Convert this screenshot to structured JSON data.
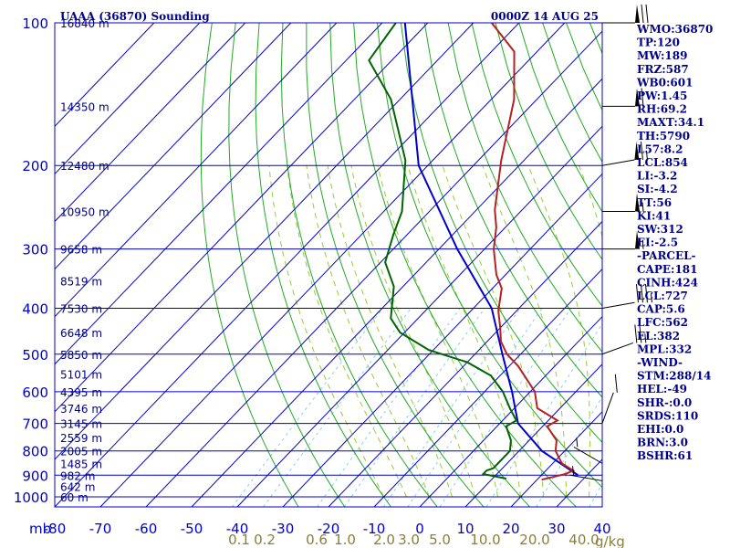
{
  "header": {
    "station": "UAAA (36870) Sounding",
    "time": "0000Z 14 AUG 25"
  },
  "stats": [
    "WMO:36870",
    "TP:120",
    "MW:189",
    "FRZ:587",
    "WB0:601",
    "PW:1.45",
    "RH:69.2",
    "MAXT:34.1",
    "TH:5790",
    "L57:8.2",
    "LCL:854",
    "LI:-3.2",
    "SI:-4.2",
    "TT:56",
    "KI:41",
    "SW:312",
    "EI:-2.5",
    "-PARCEL-",
    "CAPE:181",
    "CINH:424",
    "LCL:727",
    "CAP:5.6",
    "LFC:562",
    "EL:382",
    "MPL:332",
    "-WIND-",
    "STM:288/14",
    "HEL:-49",
    "SHR-:0.0",
    "SRDS:110",
    "EHI:0.0",
    "BRN:3.0",
    "BSHR:61"
  ],
  "colors": {
    "isobar": "#0000cd",
    "isotherm": "#0000cd",
    "dry_adiabat": "#22aa22",
    "moist_adiabat": "#9acd32",
    "mixing_ratio": "#87cefa",
    "temperature": "#b22222",
    "dewpoint": "#006400",
    "parcel": "#0000cd",
    "wind": "#000000"
  },
  "chart_data": {
    "type": "skew-t",
    "xlabel_unit": "mb",
    "mixing_unit": "g/kg",
    "pressure_levels": [
      100,
      200,
      300,
      400,
      500,
      600,
      700,
      800,
      900,
      1000
    ],
    "height_labels": [
      {
        "p": 100,
        "h": "16840 m"
      },
      {
        "p": 150,
        "h": "14350 m"
      },
      {
        "p": 200,
        "h": "12480 m"
      },
      {
        "p": 250,
        "h": "10950 m"
      },
      {
        "p": 300,
        "h": "9658 m"
      },
      {
        "p": 350,
        "h": "8519 m"
      },
      {
        "p": 400,
        "h": "7530 m"
      },
      {
        "p": 450,
        "h": "6648 m"
      },
      {
        "p": 500,
        "h": "5850 m"
      },
      {
        "p": 550,
        "h": "5101 m"
      },
      {
        "p": 600,
        "h": "4395 m"
      },
      {
        "p": 650,
        "h": "3746 m"
      },
      {
        "p": 700,
        "h": "3145 m"
      },
      {
        "p": 750,
        "h": "2559 m"
      },
      {
        "p": 800,
        "h": "2005 m"
      },
      {
        "p": 850,
        "h": "1485 m"
      },
      {
        "p": 900,
        "h": "982 m"
      },
      {
        "p": 950,
        "h": "642 m"
      },
      {
        "p": 1000,
        "h": "60 m"
      }
    ],
    "temp_ticks": [
      -80,
      -70,
      -60,
      -50,
      -40,
      -30,
      -20,
      -10,
      0,
      10,
      20,
      30,
      40
    ],
    "mixing_ratio_labels": [
      "0.1",
      "0.2",
      "0.6",
      "1.0",
      "2.0",
      "3.0",
      "5.0",
      "10.0",
      "20.0",
      "40.0"
    ],
    "temperature_profile": [
      {
        "p": 100,
        "t": -86
      },
      {
        "p": 115,
        "t": -75
      },
      {
        "p": 145,
        "t": -65
      },
      {
        "p": 195,
        "t": -55
      },
      {
        "p": 248,
        "t": -46
      },
      {
        "p": 270,
        "t": -42
      },
      {
        "p": 300,
        "t": -38
      },
      {
        "p": 340,
        "t": -32
      },
      {
        "p": 363,
        "t": -28
      },
      {
        "p": 405,
        "t": -24
      },
      {
        "p": 440,
        "t": -20
      },
      {
        "p": 470,
        "t": -17
      },
      {
        "p": 500,
        "t": -13
      },
      {
        "p": 530,
        "t": -8
      },
      {
        "p": 560,
        "t": -4
      },
      {
        "p": 600,
        "t": 1
      },
      {
        "p": 650,
        "t": 5
      },
      {
        "p": 690,
        "t": 12
      },
      {
        "p": 710,
        "t": 11
      },
      {
        "p": 760,
        "t": 16
      },
      {
        "p": 800,
        "t": 18
      },
      {
        "p": 850,
        "t": 22
      },
      {
        "p": 880,
        "t": 26
      },
      {
        "p": 895,
        "t": 25
      },
      {
        "p": 920,
        "t": 21
      }
    ],
    "dewpoint_profile": [
      {
        "p": 100,
        "td": -107
      },
      {
        "p": 120,
        "td": -105
      },
      {
        "p": 145,
        "td": -92
      },
      {
        "p": 195,
        "td": -76
      },
      {
        "p": 250,
        "td": -66
      },
      {
        "p": 280,
        "td": -63
      },
      {
        "p": 320,
        "td": -59
      },
      {
        "p": 360,
        "td": -52
      },
      {
        "p": 420,
        "td": -46
      },
      {
        "p": 450,
        "td": -41
      },
      {
        "p": 490,
        "td": -31
      },
      {
        "p": 520,
        "td": -20
      },
      {
        "p": 555,
        "td": -12
      },
      {
        "p": 600,
        "td": -6
      },
      {
        "p": 650,
        "td": -1
      },
      {
        "p": 690,
        "td": 3
      },
      {
        "p": 710,
        "td": 2
      },
      {
        "p": 760,
        "td": 6
      },
      {
        "p": 800,
        "td": 8
      },
      {
        "p": 850,
        "td": 8
      },
      {
        "p": 870,
        "td": 8
      },
      {
        "p": 880,
        "td": 7
      },
      {
        "p": 895,
        "td": 7
      },
      {
        "p": 915,
        "td": 13
      }
    ],
    "parcel_profile": [
      {
        "p": 100,
        "t": -105
      },
      {
        "p": 200,
        "t": -72
      },
      {
        "p": 300,
        "t": -46
      },
      {
        "p": 400,
        "t": -26
      },
      {
        "p": 500,
        "t": -14
      },
      {
        "p": 600,
        "t": -4
      },
      {
        "p": 700,
        "t": 4
      },
      {
        "p": 800,
        "t": 15
      },
      {
        "p": 900,
        "t": 28
      }
    ],
    "wind_barbs": [
      {
        "p": 100,
        "dir": 270,
        "spd": 70
      },
      {
        "p": 150,
        "dir": 270,
        "spd": 60
      },
      {
        "p": 200,
        "dir": 260,
        "spd": 65
      },
      {
        "p": 250,
        "dir": 270,
        "spd": 55
      },
      {
        "p": 300,
        "dir": 270,
        "spd": 55
      },
      {
        "p": 400,
        "dir": 260,
        "spd": 35
      },
      {
        "p": 500,
        "dir": 250,
        "spd": 25
      },
      {
        "p": 700,
        "dir": 200,
        "spd": 10
      },
      {
        "p": 850,
        "dir": 120,
        "spd": 5
      },
      {
        "p": 925,
        "dir": 100,
        "spd": 5
      }
    ]
  }
}
